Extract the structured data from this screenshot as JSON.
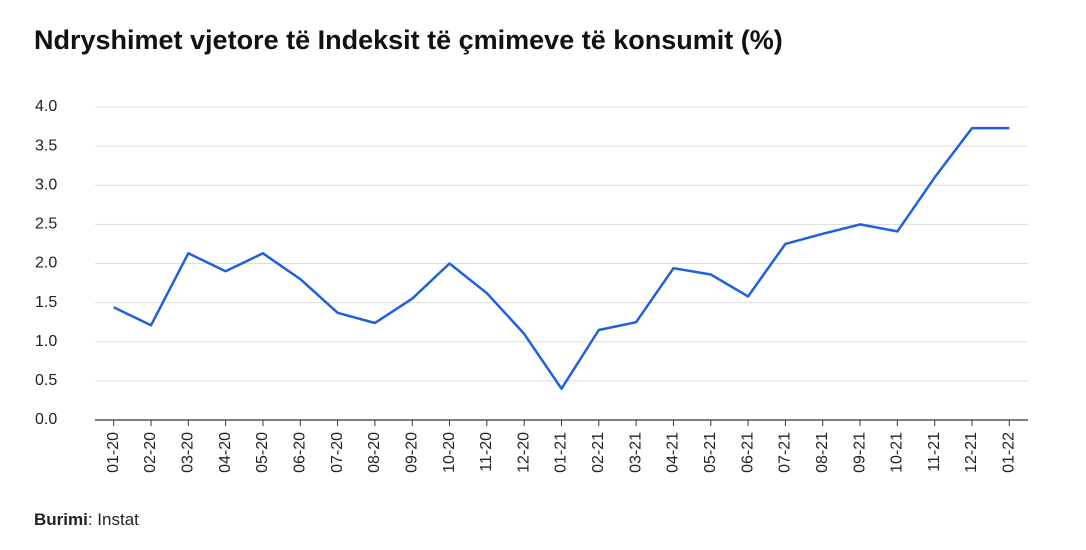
{
  "chart_data": {
    "type": "line",
    "title": "Ndryshimet vjetore të Indeksit të çmimeve të konsumit (%)",
    "categories": [
      "01-20",
      "02-20",
      "03-20",
      "04-20",
      "05-20",
      "06-20",
      "07-20",
      "08-20",
      "09-20",
      "10-20",
      "11-20",
      "12-20",
      "01-21",
      "02-21",
      "03-21",
      "04-21",
      "05-21",
      "06-21",
      "07-21",
      "08-21",
      "09-21",
      "10-21",
      "11-21",
      "12-21",
      "01-22"
    ],
    "values": [
      1.44,
      1.21,
      2.13,
      1.9,
      2.13,
      1.8,
      1.37,
      1.24,
      1.55,
      2.0,
      1.62,
      1.1,
      0.4,
      1.15,
      1.25,
      1.94,
      1.86,
      1.58,
      2.25,
      2.38,
      2.5,
      2.41,
      3.1,
      3.73,
      3.73
    ],
    "color": "#1f5fe0",
    "ylim": [
      0,
      4
    ],
    "yticks": [
      {
        "value": 0,
        "label": "0.0"
      },
      {
        "value": 0.5,
        "label": "0.5"
      },
      {
        "value": 1,
        "label": "1.0"
      },
      {
        "value": 1.5,
        "label": "1.5"
      },
      {
        "value": 2,
        "label": "2.0"
      },
      {
        "value": 2.5,
        "label": "2.5"
      },
      {
        "value": 3,
        "label": "3.0"
      },
      {
        "value": 3.5,
        "label": "3.5"
      },
      {
        "value": 4,
        "label": "4.0"
      }
    ],
    "grid": true,
    "source_label": "Burimi",
    "source_text": ": Instat"
  }
}
